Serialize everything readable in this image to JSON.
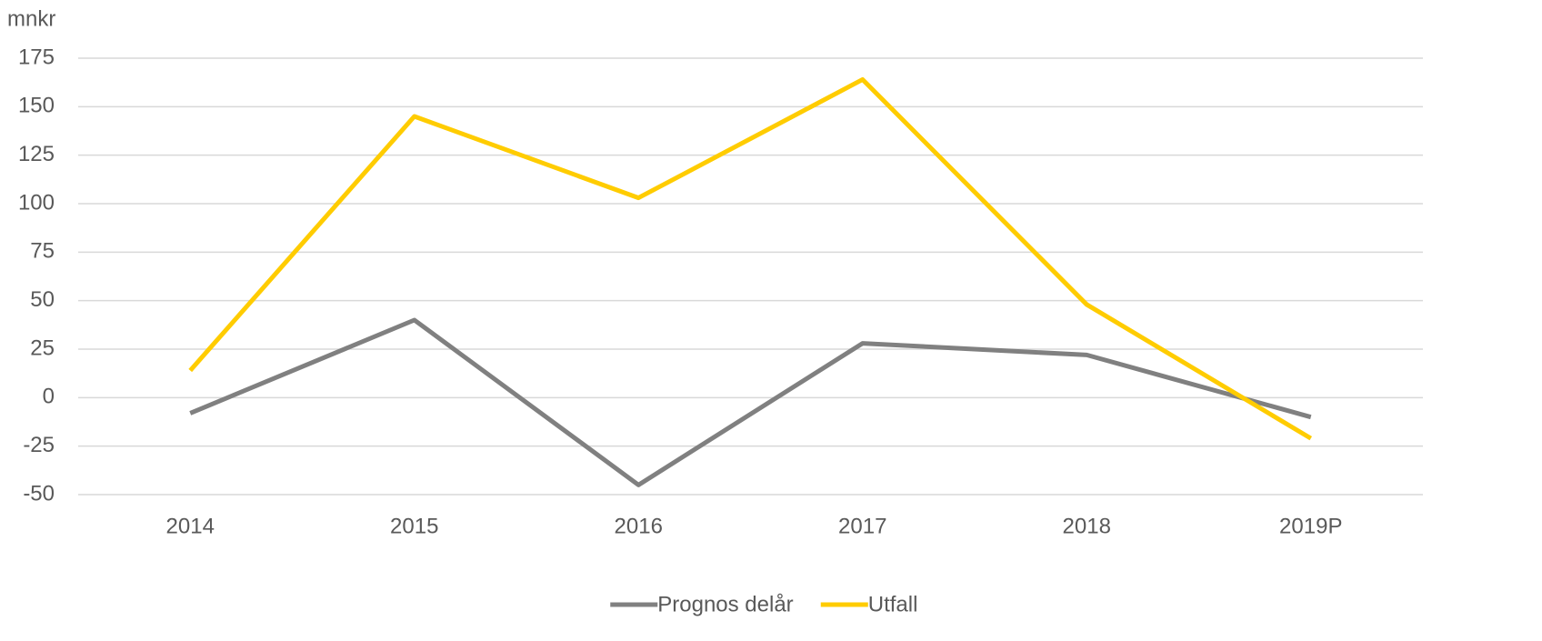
{
  "chart_data": {
    "type": "line",
    "y_label": "mnkr",
    "categories": [
      "2014",
      "2015",
      "2016",
      "2017",
      "2018",
      "2019P"
    ],
    "series": [
      {
        "name": "Prognos delår",
        "color": "#808080",
        "values": [
          -8,
          40,
          -45,
          28,
          22,
          -10
        ]
      },
      {
        "name": "Utfall",
        "color": "#ffcc00",
        "values": [
          14,
          145,
          103,
          164,
          48,
          -21
        ]
      }
    ],
    "ylim": [
      -50,
      175
    ],
    "yticks": [
      -50,
      -25,
      0,
      25,
      50,
      75,
      100,
      125,
      150,
      175
    ],
    "grid": true,
    "legend": "bottom"
  }
}
